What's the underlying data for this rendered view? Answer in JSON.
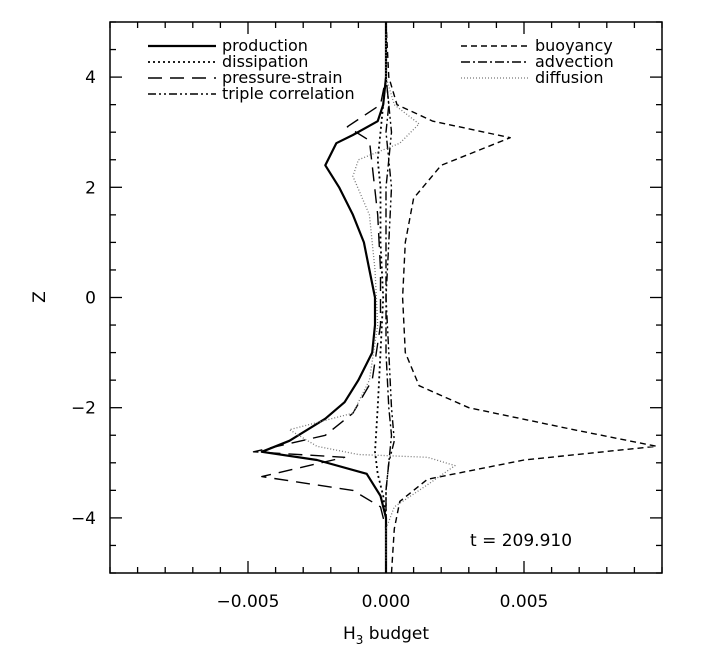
{
  "chart_data": {
    "type": "line",
    "title": "",
    "xlabel": "H3 budget",
    "xlabel_main": "H",
    "xlabel_sub": "3",
    "xlabel_rest": " budget",
    "ylabel": "Z",
    "xlim": [
      -0.01,
      0.01
    ],
    "ylim": [
      -5,
      5
    ],
    "x_ticks": [
      -0.005,
      0.0,
      0.005
    ],
    "x_tick_labels": [
      "−0.005",
      "0.000",
      "0.005"
    ],
    "y_ticks": [
      -4,
      -2,
      0,
      2,
      4
    ],
    "y_tick_labels": [
      "−4",
      "−2",
      "0",
      "2",
      "4"
    ],
    "grid": false,
    "legend_position": "top",
    "annotation": "t = 209.910",
    "series": [
      {
        "name": "production",
        "dash": "solid",
        "points": [
          [
            0,
            5
          ],
          [
            0,
            4.5
          ],
          [
            0,
            4
          ],
          [
            -0.0001,
            3.5
          ],
          [
            -0.0003,
            3.2
          ],
          [
            -0.0012,
            2.95
          ],
          [
            -0.0018,
            2.8
          ],
          [
            -0.0022,
            2.4
          ],
          [
            -0.0017,
            2.0
          ],
          [
            -0.0012,
            1.5
          ],
          [
            -0.0008,
            1.0
          ],
          [
            -0.0006,
            0.5
          ],
          [
            -0.0004,
            0
          ],
          [
            -0.0004,
            -0.5
          ],
          [
            -0.0005,
            -1.0
          ],
          [
            -0.001,
            -1.5
          ],
          [
            -0.0015,
            -1.9
          ],
          [
            -0.0022,
            -2.2
          ],
          [
            -0.0035,
            -2.6
          ],
          [
            -0.0045,
            -2.8
          ],
          [
            -0.0025,
            -2.95
          ],
          [
            -0.0007,
            -3.2
          ],
          [
            -0.0002,
            -3.6
          ],
          [
            0,
            -4
          ],
          [
            0,
            -5
          ]
        ]
      },
      {
        "name": "dissipation",
        "dash": "dotted",
        "points": [
          [
            0,
            5
          ],
          [
            0,
            4
          ],
          [
            -0.0001,
            3.5
          ],
          [
            -0.0002,
            3.0
          ],
          [
            -0.0003,
            2.5
          ],
          [
            -0.0002,
            2.0
          ],
          [
            -0.0002,
            1.0
          ],
          [
            -0.0001,
            0
          ],
          [
            -0.0002,
            -1.0
          ],
          [
            -0.0003,
            -2.0
          ],
          [
            -0.0004,
            -2.8
          ],
          [
            -0.0003,
            -3.2
          ],
          [
            -0.0001,
            -3.6
          ],
          [
            0,
            -4
          ],
          [
            0,
            -5
          ]
        ]
      },
      {
        "name": "pressure-strain",
        "dash": "longdash",
        "points": [
          [
            0,
            5
          ],
          [
            0,
            4
          ],
          [
            -0.0002,
            3.5
          ],
          [
            -0.0014,
            3.1
          ],
          [
            -0.0006,
            2.85
          ],
          [
            -0.0005,
            2.4
          ],
          [
            -0.0003,
            1.5
          ],
          [
            -0.0002,
            0.5
          ],
          [
            -0.0002,
            -0.5
          ],
          [
            -0.0005,
            -1.5
          ],
          [
            -0.0012,
            -2.1
          ],
          [
            -0.0022,
            -2.5
          ],
          [
            -0.0048,
            -2.8
          ],
          [
            -0.0015,
            -2.9
          ],
          [
            -0.0045,
            -3.25
          ],
          [
            -0.0012,
            -3.5
          ],
          [
            -0.0002,
            -3.8
          ],
          [
            0,
            -4.2
          ],
          [
            0,
            -5
          ]
        ]
      },
      {
        "name": "triple correlation",
        "dash": "dashdotdot",
        "points": [
          [
            0,
            5
          ],
          [
            0,
            4
          ],
          [
            0.0001,
            3.5
          ],
          [
            0.0002,
            3.0
          ],
          [
            0.0001,
            2.5
          ],
          [
            0.0002,
            2.0
          ],
          [
            0.0001,
            1.0
          ],
          [
            0,
            0
          ],
          [
            0.0001,
            -1.0
          ],
          [
            0.0002,
            -2.0
          ],
          [
            0.0003,
            -2.6
          ],
          [
            0.0001,
            -3.0
          ],
          [
            0,
            -3.5
          ],
          [
            0,
            -5
          ]
        ]
      },
      {
        "name": "buoyancy",
        "dash": "dashed",
        "points": [
          [
            0,
            5
          ],
          [
            0.0001,
            4.0
          ],
          [
            0.0004,
            3.5
          ],
          [
            0.0017,
            3.2
          ],
          [
            0.0045,
            2.9
          ],
          [
            0.002,
            2.4
          ],
          [
            0.001,
            1.8
          ],
          [
            0.0007,
            1.0
          ],
          [
            0.0006,
            0
          ],
          [
            0.0007,
            -1.0
          ],
          [
            0.0012,
            -1.6
          ],
          [
            0.003,
            -2.0
          ],
          [
            0.0068,
            -2.4
          ],
          [
            0.0098,
            -2.7
          ],
          [
            0.005,
            -2.95
          ],
          [
            0.0015,
            -3.3
          ],
          [
            0.0005,
            -3.7
          ],
          [
            0.0003,
            -4.2
          ],
          [
            0.0002,
            -5
          ]
        ]
      },
      {
        "name": "advection",
        "dash": "dashdot",
        "points": [
          [
            0,
            5
          ],
          [
            0,
            4.5
          ],
          [
            0,
            4
          ],
          [
            0.0001,
            3.5
          ],
          [
            0,
            3.0
          ],
          [
            0.0001,
            2.5
          ],
          [
            0,
            2.0
          ],
          [
            0,
            1.0
          ],
          [
            0,
            0
          ],
          [
            0,
            -1.0
          ],
          [
            0.0001,
            -2.0
          ],
          [
            0.0002,
            -2.5
          ],
          [
            0.0001,
            -3.0
          ],
          [
            0,
            -3.5
          ],
          [
            0,
            -4.5
          ],
          [
            0,
            -5
          ]
        ]
      },
      {
        "name": "diffusion",
        "dash": "finedotted",
        "points": [
          [
            0,
            5
          ],
          [
            0,
            4
          ],
          [
            0.0003,
            3.5
          ],
          [
            0.0012,
            3.15
          ],
          [
            0.0005,
            2.8
          ],
          [
            -0.001,
            2.5
          ],
          [
            -0.0012,
            2.2
          ],
          [
            -0.0006,
            1.5
          ],
          [
            -0.0004,
            0.5
          ],
          [
            -0.0003,
            -0.5
          ],
          [
            -0.0006,
            -1.5
          ],
          [
            -0.0012,
            -2.1
          ],
          [
            -0.0035,
            -2.4
          ],
          [
            -0.0025,
            -2.7
          ],
          [
            -0.001,
            -2.85
          ],
          [
            0.0015,
            -2.9
          ],
          [
            0.0025,
            -3.05
          ],
          [
            0.0015,
            -3.4
          ],
          [
            0.0003,
            -3.8
          ],
          [
            0,
            -4.2
          ],
          [
            0,
            -5
          ]
        ]
      }
    ]
  }
}
